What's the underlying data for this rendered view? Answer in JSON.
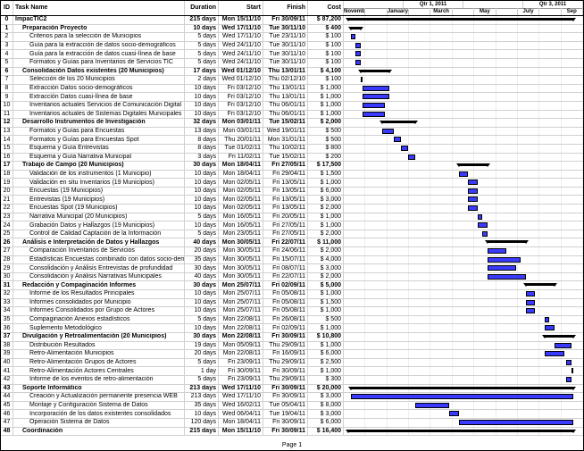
{
  "headers": {
    "id": "ID",
    "name": "Task Name",
    "dur": "Duration",
    "start": "Start",
    "fin": "Finish",
    "cost": "Cost"
  },
  "footer": "Page 1",
  "timescale": {
    "quarters": [
      "",
      "Qtr 1, 2011",
      "",
      "Qtr 3, 2011"
    ],
    "months": [
      "November",
      "",
      "January",
      "",
      "March",
      "",
      "May",
      "",
      "July",
      "",
      "Sep"
    ],
    "ticks": [
      "B",
      "E",
      "M",
      "B",
      "E",
      "M",
      "B",
      "E",
      "M",
      "B",
      "E",
      "M",
      "B",
      "E",
      "M",
      "B"
    ]
  },
  "gantt": {
    "cols": 11,
    "left_pct_per_month": 9.09
  },
  "rows": [
    {
      "id": 0,
      "ind": 0,
      "name": "ImpacTIC2",
      "dur": "215 days",
      "start": "Mon 15/11/10",
      "fin": "Fri 30/09/11",
      "cost": "$ 87,200",
      "b": true,
      "sum": [
        2,
        96
      ]
    },
    {
      "id": 1,
      "ind": 1,
      "name": "Preparación Proyecto",
      "dur": "10 days",
      "start": "Wed 17/11/10",
      "fin": "Tue 30/11/10",
      "cost": "$ 400",
      "b": true,
      "sum": [
        3,
        7
      ]
    },
    {
      "id": 2,
      "ind": 2,
      "name": "Criterios para la selección de Municipios",
      "dur": "5 days",
      "start": "Wed 17/11/10",
      "fin": "Tue 23/11/10",
      "cost": "$ 100",
      "bar": [
        3,
        5
      ]
    },
    {
      "id": 3,
      "ind": 2,
      "name": "Guía para la extracción de datos socio-demográficos",
      "dur": "5 days",
      "start": "Wed 24/11/10",
      "fin": "Tue 30/11/10",
      "cost": "$ 100",
      "bar": [
        5,
        7
      ]
    },
    {
      "id": 4,
      "ind": 2,
      "name": "Guía para la extracción de datos cuasi-línea de base",
      "dur": "5 days",
      "start": "Wed 24/11/10",
      "fin": "Tue 30/11/10",
      "cost": "$ 100",
      "bar": [
        5,
        7
      ]
    },
    {
      "id": 5,
      "ind": 2,
      "name": "Formatos y Guías para Inventarios de Servicios TIC",
      "dur": "5 days",
      "start": "Wed 24/11/10",
      "fin": "Tue 30/11/10",
      "cost": "$ 100",
      "bar": [
        5,
        7
      ]
    },
    {
      "id": 6,
      "ind": 1,
      "name": "Consolidación Datos existentes (20 Municipios)",
      "dur": "17 days",
      "start": "Wed 01/12/10",
      "fin": "Thu 13/01/11",
      "cost": "$ 4,100",
      "b": true,
      "sum": [
        7,
        19
      ]
    },
    {
      "id": 7,
      "ind": 2,
      "name": "Selección de los 20 Municipios",
      "dur": "2 days",
      "start": "Wed 01/12/10",
      "fin": "Thu 02/12/10",
      "cost": "$ 100",
      "bar": [
        7,
        8
      ]
    },
    {
      "id": 8,
      "ind": 2,
      "name": "Extracción Datos socio-demográficos",
      "dur": "10 days",
      "start": "Fri 03/12/10",
      "fin": "Thu 13/01/11",
      "cost": "$ 1,000",
      "bar": [
        8,
        19
      ]
    },
    {
      "id": 9,
      "ind": 2,
      "name": "Extracción Datos cuasi-línea de base",
      "dur": "10 days",
      "start": "Fri 03/12/10",
      "fin": "Thu 13/01/11",
      "cost": "$ 1,000",
      "bar": [
        8,
        19
      ]
    },
    {
      "id": 10,
      "ind": 2,
      "name": "Inventarios actuales Servicios de Comunicación Digital",
      "dur": "10 days",
      "start": "Fri 03/12/10",
      "fin": "Thu 06/01/11",
      "cost": "$ 1,000",
      "bar": [
        8,
        17
      ]
    },
    {
      "id": 11,
      "ind": 2,
      "name": "Inventarios actuales de Sistemas Digitales Municipales",
      "dur": "10 days",
      "start": "Fri 03/12/10",
      "fin": "Thu 06/01/11",
      "cost": "$ 1,000",
      "bar": [
        8,
        17
      ]
    },
    {
      "id": 12,
      "ind": 1,
      "name": "Desarrollo Instrumentos de Investigación",
      "dur": "32 days",
      "start": "Mon 03/01/11",
      "fin": "Tue 15/02/11",
      "cost": "$ 2,000",
      "b": true,
      "sum": [
        16,
        30
      ]
    },
    {
      "id": 13,
      "ind": 2,
      "name": "Formatos y Guías para Encuestas",
      "dur": "13 days",
      "start": "Mon 03/01/11",
      "fin": "Wed 19/01/11",
      "cost": "$ 500",
      "bar": [
        16,
        21
      ]
    },
    {
      "id": 14,
      "ind": 2,
      "name": "Formatos y Guías para Encuestas Spot",
      "dur": "8 days",
      "start": "Thu 20/01/11",
      "fin": "Mon 31/01/11",
      "cost": "$ 500",
      "bar": [
        21,
        24
      ]
    },
    {
      "id": 15,
      "ind": 2,
      "name": "Esquema y Guía Entrevistas",
      "dur": "8 days",
      "start": "Tue 01/02/11",
      "fin": "Thu 10/02/11",
      "cost": "$ 800",
      "bar": [
        24,
        27
      ]
    },
    {
      "id": 16,
      "ind": 2,
      "name": "Esquema y Guía Narrativa Municipal",
      "dur": "3 days",
      "start": "Fri 11/02/11",
      "fin": "Tue 15/02/11",
      "cost": "$ 200",
      "bar": [
        27,
        30
      ]
    },
    {
      "id": 17,
      "ind": 1,
      "name": "Trabajo de Campo (20 Municipios)",
      "dur": "30 days",
      "start": "Mon 18/04/11",
      "fin": "Fri 27/05/11",
      "cost": "$ 17,500",
      "b": true,
      "sum": [
        48,
        60
      ]
    },
    {
      "id": 18,
      "ind": 2,
      "name": "Validación de los instrumentos (1 Municipio)",
      "dur": "10 days",
      "start": "Mon 18/04/11",
      "fin": "Fri 29/04/11",
      "cost": "$ 1,500",
      "bar": [
        48,
        52
      ]
    },
    {
      "id": 19,
      "ind": 2,
      "name": "Validación en situ Inventarios (19 Municipios)",
      "dur": "10 days",
      "start": "Mon 02/05/11",
      "fin": "Fri 13/05/11",
      "cost": "$ 1,000",
      "bar": [
        52,
        56
      ]
    },
    {
      "id": 20,
      "ind": 2,
      "name": "Encuestas (19 Municipios)",
      "dur": "10 days",
      "start": "Mon 02/05/11",
      "fin": "Fri 13/05/11",
      "cost": "$ 6,000",
      "bar": [
        52,
        56
      ]
    },
    {
      "id": 21,
      "ind": 2,
      "name": "Entrevistas (19 Municipios)",
      "dur": "10 days",
      "start": "Mon 02/05/11",
      "fin": "Fri 13/05/11",
      "cost": "$ 3,000",
      "bar": [
        52,
        56
      ]
    },
    {
      "id": 22,
      "ind": 2,
      "name": "Encuestas Spot  (19 Municipios)",
      "dur": "10 days",
      "start": "Mon 02/05/11",
      "fin": "Fri 13/05/11",
      "cost": "$ 2,000",
      "bar": [
        52,
        56
      ]
    },
    {
      "id": 23,
      "ind": 2,
      "name": "Narrativa Municipal (20 Municipios)",
      "dur": "5 days",
      "start": "Mon 16/05/11",
      "fin": "Fri 20/05/11",
      "cost": "$ 1,000",
      "bar": [
        56,
        58
      ]
    },
    {
      "id": 24,
      "ind": 2,
      "name": "Grabación Datos y Hallazgos (19 Municipios)",
      "dur": "10 days",
      "start": "Mon 16/05/11",
      "fin": "Fri 27/05/11",
      "cost": "$ 1,000",
      "bar": [
        56,
        60
      ]
    },
    {
      "id": 25,
      "ind": 2,
      "name": "Control de Calidad Captación de la Información",
      "dur": "5 days",
      "start": "Mon 23/05/11",
      "fin": "Fri 27/05/11",
      "cost": "$ 2,000",
      "bar": [
        58,
        60
      ]
    },
    {
      "id": 26,
      "ind": 1,
      "name": "Análisis e Interpretación de Datos y Hallazgos",
      "dur": "40 days",
      "start": "Mon 30/05/11",
      "fin": "Fri 22/07/11",
      "cost": "$ 11,000",
      "b": true,
      "sum": [
        60,
        76
      ]
    },
    {
      "id": 27,
      "ind": 2,
      "name": "Comparación Inventarios de Servicios",
      "dur": "20 days",
      "start": "Mon 30/05/11",
      "fin": "Fri 24/06/11",
      "cost": "$ 2,000",
      "bar": [
        60,
        68
      ]
    },
    {
      "id": 28,
      "ind": 2,
      "name": "Estadísticas Encuestas combinado con datos socio-demogr",
      "dur": "35 days",
      "start": "Mon 30/05/11",
      "fin": "Fri 15/07/11",
      "cost": "$ 4,000",
      "bar": [
        60,
        74
      ]
    },
    {
      "id": 29,
      "ind": 2,
      "name": "Consolidación y Análisis Entrevistas de profundidad",
      "dur": "30 days",
      "start": "Mon 30/05/11",
      "fin": "Fri 08/07/11",
      "cost": "$ 3,000",
      "bar": [
        60,
        72
      ]
    },
    {
      "id": 30,
      "ind": 2,
      "name": "Consolidación y Análisis Narrativas Municipales",
      "dur": "40 days",
      "start": "Mon 30/05/11",
      "fin": "Fri 22/07/11",
      "cost": "$ 2,000",
      "bar": [
        60,
        76
      ]
    },
    {
      "id": 31,
      "ind": 1,
      "name": "Redacción y Compaginación Informes",
      "dur": "30 days",
      "start": "Mon 25/07/11",
      "fin": "Fri 02/09/11",
      "cost": "$ 5,000",
      "b": true,
      "sum": [
        76,
        88
      ]
    },
    {
      "id": 32,
      "ind": 2,
      "name": "Informe de los Resultados Principales",
      "dur": "10 days",
      "start": "Mon 25/07/11",
      "fin": "Fri 05/08/11",
      "cost": "$ 1,000",
      "bar": [
        76,
        80
      ]
    },
    {
      "id": 33,
      "ind": 2,
      "name": "Informes consolidados por Municipio",
      "dur": "10 days",
      "start": "Mon 25/07/11",
      "fin": "Fri 05/08/11",
      "cost": "$ 1,500",
      "bar": [
        76,
        80
      ]
    },
    {
      "id": 34,
      "ind": 2,
      "name": "Informes Consolidados por Grupo de Actores",
      "dur": "10 days",
      "start": "Mon 25/07/11",
      "fin": "Fri 05/08/11",
      "cost": "$ 1,000",
      "bar": [
        76,
        80
      ]
    },
    {
      "id": 35,
      "ind": 2,
      "name": "Compaginación Anexos estadísticos",
      "dur": "5 days",
      "start": "Mon 22/08/11",
      "fin": "Fri 26/08/11",
      "cost": "$ 500",
      "bar": [
        84,
        86
      ]
    },
    {
      "id": 36,
      "ind": 2,
      "name": "Suplemento Metodológico",
      "dur": "10 days",
      "start": "Mon 22/08/11",
      "fin": "Fri 02/09/11",
      "cost": "$ 1,000",
      "bar": [
        84,
        88
      ]
    },
    {
      "id": 37,
      "ind": 1,
      "name": "Divulgación y Retroalimentación (20 Municipios)",
      "dur": "30 days",
      "start": "Mon 22/08/11",
      "fin": "Fri 30/09/11",
      "cost": "$ 10,800",
      "b": true,
      "sum": [
        84,
        96
      ]
    },
    {
      "id": 38,
      "ind": 2,
      "name": "Distribución Resultados",
      "dur": "19 days",
      "start": "Mon 05/09/11",
      "fin": "Thu 29/09/11",
      "cost": "$ 1,000",
      "bar": [
        88,
        95
      ]
    },
    {
      "id": 39,
      "ind": 2,
      "name": "Retro-Alimentación Municipios",
      "dur": "20 days",
      "start": "Mon 22/08/11",
      "fin": "Fri 16/09/11",
      "cost": "$ 6,000",
      "bar": [
        84,
        92
      ]
    },
    {
      "id": 40,
      "ind": 2,
      "name": "Retro-Alimentación Grupos de Actores",
      "dur": "5 days",
      "start": "Fri 23/09/11",
      "fin": "Thu 29/09/11",
      "cost": "$ 2,500",
      "bar": [
        93,
        95
      ]
    },
    {
      "id": 41,
      "ind": 2,
      "name": "Retro-Alimentación Actores Centrales",
      "dur": "1 day",
      "start": "Fri 30/09/11",
      "fin": "Fri 30/09/11",
      "cost": "$ 1,000",
      "bar": [
        95,
        96
      ]
    },
    {
      "id": 42,
      "ind": 2,
      "name": "Informe de los eventos de retro-alimentación",
      "dur": "5 days",
      "start": "Fri 23/09/11",
      "fin": "Thu 29/09/11",
      "cost": "$ 300",
      "bar": [
        93,
        95
      ]
    },
    {
      "id": 43,
      "ind": 1,
      "name": "Soporte Informático",
      "dur": "213 days",
      "start": "Wed 17/11/10",
      "fin": "Fri 30/09/11",
      "cost": "$ 20,000",
      "b": true,
      "sum": [
        3,
        96
      ]
    },
    {
      "id": 44,
      "ind": 2,
      "name": "Creación y Actualización permanente presencia WEB",
      "dur": "213 days",
      "start": "Wed 17/11/10",
      "fin": "Fri 30/09/11",
      "cost": "$ 3,000",
      "bar": [
        3,
        96
      ]
    },
    {
      "id": 45,
      "ind": 2,
      "name": "Montaje y Configuración Sistema de Datos",
      "dur": "35 days",
      "start": "Wed 16/02/11",
      "fin": "Tue 05/04/11",
      "cost": "$ 8,000",
      "bar": [
        30,
        44
      ]
    },
    {
      "id": 46,
      "ind": 2,
      "name": "Incorporación de los datos existentes consolidados",
      "dur": "10 days",
      "start": "Wed 06/04/11",
      "fin": "Tue 19/04/11",
      "cost": "$ 3,000",
      "bar": [
        44,
        48
      ]
    },
    {
      "id": 47,
      "ind": 2,
      "name": "Operación Sistema de Datos",
      "dur": "120 days",
      "start": "Mon 18/04/11",
      "fin": "Fri 30/09/11",
      "cost": "$ 6,000",
      "bar": [
        48,
        96
      ]
    },
    {
      "id": 48,
      "ind": 1,
      "name": "Coordinación",
      "dur": "215 days",
      "start": "Mon 15/11/10",
      "fin": "Fri 30/09/11",
      "cost": "$ 16,400",
      "b": true,
      "sum": [
        2,
        96
      ]
    }
  ]
}
